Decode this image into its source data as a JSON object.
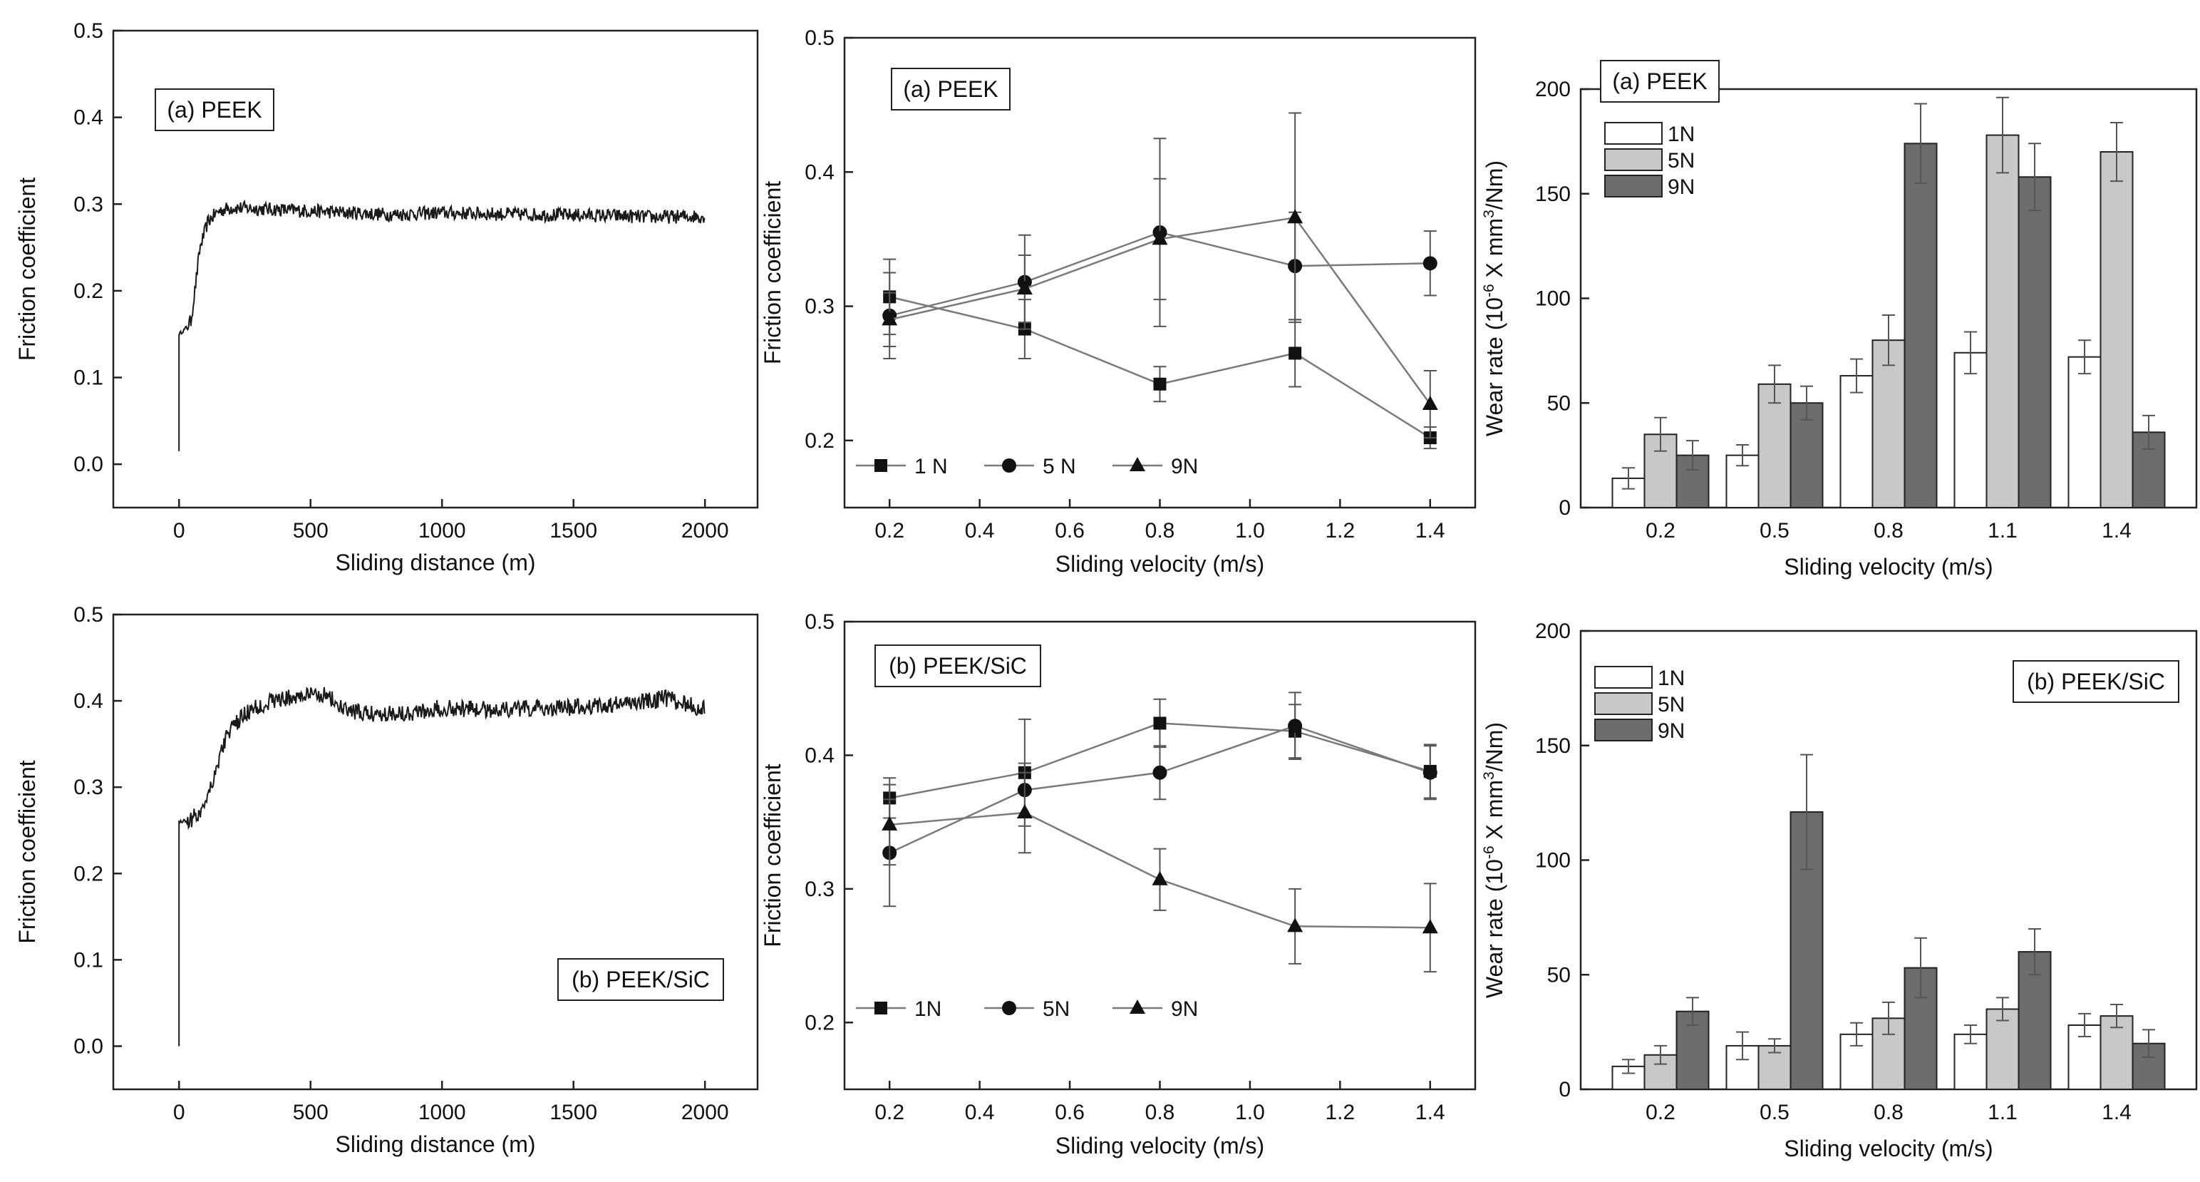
{
  "chart_data": [
    {
      "id": "p1",
      "type": "line",
      "label_box": "(a) PEEK",
      "xlabel": "Sliding distance (m)",
      "ylabel": "Friction coefficient",
      "xlim": [
        -250,
        2200
      ],
      "ylim": [
        -0.05,
        0.5
      ],
      "xticks": [
        0,
        500,
        1000,
        1500,
        2000
      ],
      "yticks": [
        0.0,
        0.1,
        0.2,
        0.3,
        0.4,
        0.5
      ],
      "xtick_labels": [
        "0",
        "500",
        "1000",
        "1500",
        "2000"
      ],
      "ytick_labels": [
        "0.0",
        "0.1",
        "0.2",
        "0.3",
        "0.4",
        "0.5"
      ],
      "trace": {
        "start": 0.015,
        "ramp": [
          [
            0,
            0.15
          ],
          [
            20,
            0.155
          ],
          [
            45,
            0.165
          ],
          [
            60,
            0.2
          ],
          [
            80,
            0.25
          ],
          [
            110,
            0.28
          ],
          [
            150,
            0.292
          ],
          [
            200,
            0.296
          ]
        ],
        "plateau": [
          [
            200,
            0.296
          ],
          [
            500,
            0.292
          ],
          [
            800,
            0.288
          ],
          [
            1000,
            0.29
          ],
          [
            1300,
            0.288
          ],
          [
            1600,
            0.287
          ],
          [
            1800,
            0.285
          ],
          [
            2000,
            0.286
          ]
        ],
        "noise": 0.008
      }
    },
    {
      "id": "p4",
      "type": "line",
      "label_box": "(b) PEEK/SiC",
      "xlabel": "Sliding distance (m)",
      "ylabel": "Friction coefficient",
      "xlim": [
        -250,
        2200
      ],
      "ylim": [
        -0.05,
        0.5
      ],
      "xticks": [
        0,
        500,
        1000,
        1500,
        2000
      ],
      "yticks": [
        0.0,
        0.1,
        0.2,
        0.3,
        0.4,
        0.5
      ],
      "xtick_labels": [
        "0",
        "500",
        "1000",
        "1500",
        "2000"
      ],
      "ytick_labels": [
        "0.0",
        "0.1",
        "0.2",
        "0.3",
        "0.4",
        "0.5"
      ],
      "trace": {
        "start": 0.0,
        "ramp": [
          [
            0,
            0.26
          ],
          [
            40,
            0.262
          ],
          [
            80,
            0.27
          ],
          [
            130,
            0.31
          ],
          [
            180,
            0.36
          ],
          [
            250,
            0.385
          ],
          [
            350,
            0.4
          ],
          [
            450,
            0.405
          ],
          [
            560,
            0.408
          ],
          [
            620,
            0.39
          ],
          [
            700,
            0.385
          ]
        ],
        "plateau": [
          [
            700,
            0.385
          ],
          [
            900,
            0.387
          ],
          [
            1000,
            0.392
          ],
          [
            1200,
            0.39
          ],
          [
            1500,
            0.392
          ],
          [
            1700,
            0.397
          ],
          [
            1850,
            0.403
          ],
          [
            2000,
            0.39
          ]
        ],
        "noise": 0.01
      }
    },
    {
      "id": "p2",
      "type": "line",
      "label_box": "(a) PEEK",
      "xlabel": "Sliding velocity (m/s)",
      "ylabel": "Friction coefficient",
      "xlim": [
        0.1,
        1.5
      ],
      "ylim": [
        0.15,
        0.5
      ],
      "xticks": [
        0.2,
        0.4,
        0.6,
        0.8,
        1.0,
        1.2,
        1.4
      ],
      "yticks": [
        0.2,
        0.3,
        0.4,
        0.5
      ],
      "xtick_labels": [
        "0.2",
        "0.4",
        "0.6",
        "0.8",
        "1.0",
        "1.2",
        "1.4"
      ],
      "ytick_labels": [
        "0.2",
        "0.3",
        "0.4",
        "0.5"
      ],
      "x": [
        0.2,
        0.5,
        0.8,
        1.1,
        1.4
      ],
      "series": [
        {
          "name": "1 N",
          "marker": "square",
          "values": [
            0.307,
            0.283,
            0.242,
            0.265,
            0.202
          ],
          "err": [
            0.028,
            0.022,
            0.013,
            0.025,
            0.008
          ]
        },
        {
          "name": "5 N",
          "marker": "circle",
          "values": [
            0.293,
            0.318,
            0.355,
            0.33,
            0.332
          ],
          "err": [
            0.032,
            0.035,
            0.07,
            0.04,
            0.024
          ]
        },
        {
          "name": "9N",
          "marker": "triangle",
          "values": [
            0.29,
            0.313,
            0.35,
            0.366,
            0.227
          ],
          "err": [
            0.02,
            0.025,
            0.045,
            0.078,
            0.025
          ]
        }
      ],
      "legend": "bottom-left"
    },
    {
      "id": "p5",
      "type": "line",
      "label_box": "(b) PEEK/SiC",
      "xlabel": "Sliding velocity (m/s)",
      "ylabel": "Friction coefficient",
      "xlim": [
        0.1,
        1.5
      ],
      "ylim": [
        0.15,
        0.5
      ],
      "xticks": [
        0.2,
        0.4,
        0.6,
        0.8,
        1.0,
        1.2,
        1.4
      ],
      "yticks": [
        0.2,
        0.3,
        0.4,
        0.5
      ],
      "xtick_labels": [
        "0.2",
        "0.4",
        "0.6",
        "0.8",
        "1.0",
        "1.2",
        "1.4"
      ],
      "ytick_labels": [
        "0.2",
        "0.3",
        "0.4",
        "0.5"
      ],
      "x": [
        0.2,
        0.5,
        0.8,
        1.1,
        1.4
      ],
      "series": [
        {
          "name": "1N",
          "marker": "square",
          "values": [
            0.368,
            0.387,
            0.424,
            0.418,
            0.388
          ],
          "err": [
            0.015,
            0.04,
            0.018,
            0.02,
            0.02
          ]
        },
        {
          "name": "5N",
          "marker": "circle",
          "values": [
            0.327,
            0.374,
            0.387,
            0.422,
            0.387
          ],
          "err": [
            0.04,
            0.02,
            0.02,
            0.025,
            0.02
          ]
        },
        {
          "name": "9N",
          "marker": "triangle",
          "values": [
            0.348,
            0.357,
            0.307,
            0.272,
            0.271
          ],
          "err": [
            0.03,
            0.03,
            0.023,
            0.028,
            0.033
          ]
        }
      ],
      "legend": "bottom-left"
    },
    {
      "id": "p3",
      "type": "bar",
      "label_box": "(a) PEEK",
      "xlabel": "Sliding velocity (m/s)",
      "ylabel": "Wear rate (10^-6 X mm^3/Nm)",
      "ylim": [
        0,
        200
      ],
      "yticks": [
        0,
        50,
        100,
        150,
        200
      ],
      "ytick_labels": [
        "0",
        "50",
        "100",
        "150",
        "200"
      ],
      "categories": [
        "0.2",
        "0.5",
        "0.8",
        "1.1",
        "1.4"
      ],
      "series": [
        {
          "name": "1N",
          "color": "#ffffff",
          "values": [
            14,
            25,
            63,
            74,
            72
          ],
          "err": [
            5,
            5,
            8,
            10,
            8
          ]
        },
        {
          "name": "5N",
          "color": "#c8c8c8",
          "values": [
            35,
            59,
            80,
            178,
            170
          ],
          "err": [
            8,
            9,
            12,
            18,
            14
          ]
        },
        {
          "name": "9N",
          "color": "#6c6c6c",
          "values": [
            25,
            50,
            174,
            158,
            36
          ],
          "err": [
            7,
            8,
            19,
            16,
            8
          ]
        }
      ],
      "legend": "top-left"
    },
    {
      "id": "p6",
      "type": "bar",
      "label_box": "(b) PEEK/SiC",
      "xlabel": "Sliding velocity (m/s)",
      "ylabel": "Wear rate (10^-6 X mm^3/Nm)",
      "ylim": [
        0,
        200
      ],
      "yticks": [
        0,
        50,
        100,
        150,
        200
      ],
      "ytick_labels": [
        "0",
        "50",
        "100",
        "150",
        "200"
      ],
      "categories": [
        "0.2",
        "0.5",
        "0.8",
        "1.1",
        "1.4"
      ],
      "series": [
        {
          "name": "1N",
          "color": "#ffffff",
          "values": [
            10,
            19,
            24,
            24,
            28
          ],
          "err": [
            3,
            6,
            5,
            4,
            5
          ]
        },
        {
          "name": "5N",
          "color": "#c8c8c8",
          "values": [
            15,
            19,
            31,
            35,
            32
          ],
          "err": [
            4,
            3,
            7,
            5,
            5
          ]
        },
        {
          "name": "9N",
          "color": "#6c6c6c",
          "values": [
            34,
            121,
            53,
            60,
            20
          ],
          "err": [
            6,
            25,
            13,
            10,
            6
          ]
        }
      ],
      "legend": "top-left"
    }
  ],
  "wear_axis_label": {
    "pre": "Wear rate (10",
    "sup1": "-6",
    "mid": " X mm",
    "sup2": "3",
    "post": "/Nm)"
  }
}
